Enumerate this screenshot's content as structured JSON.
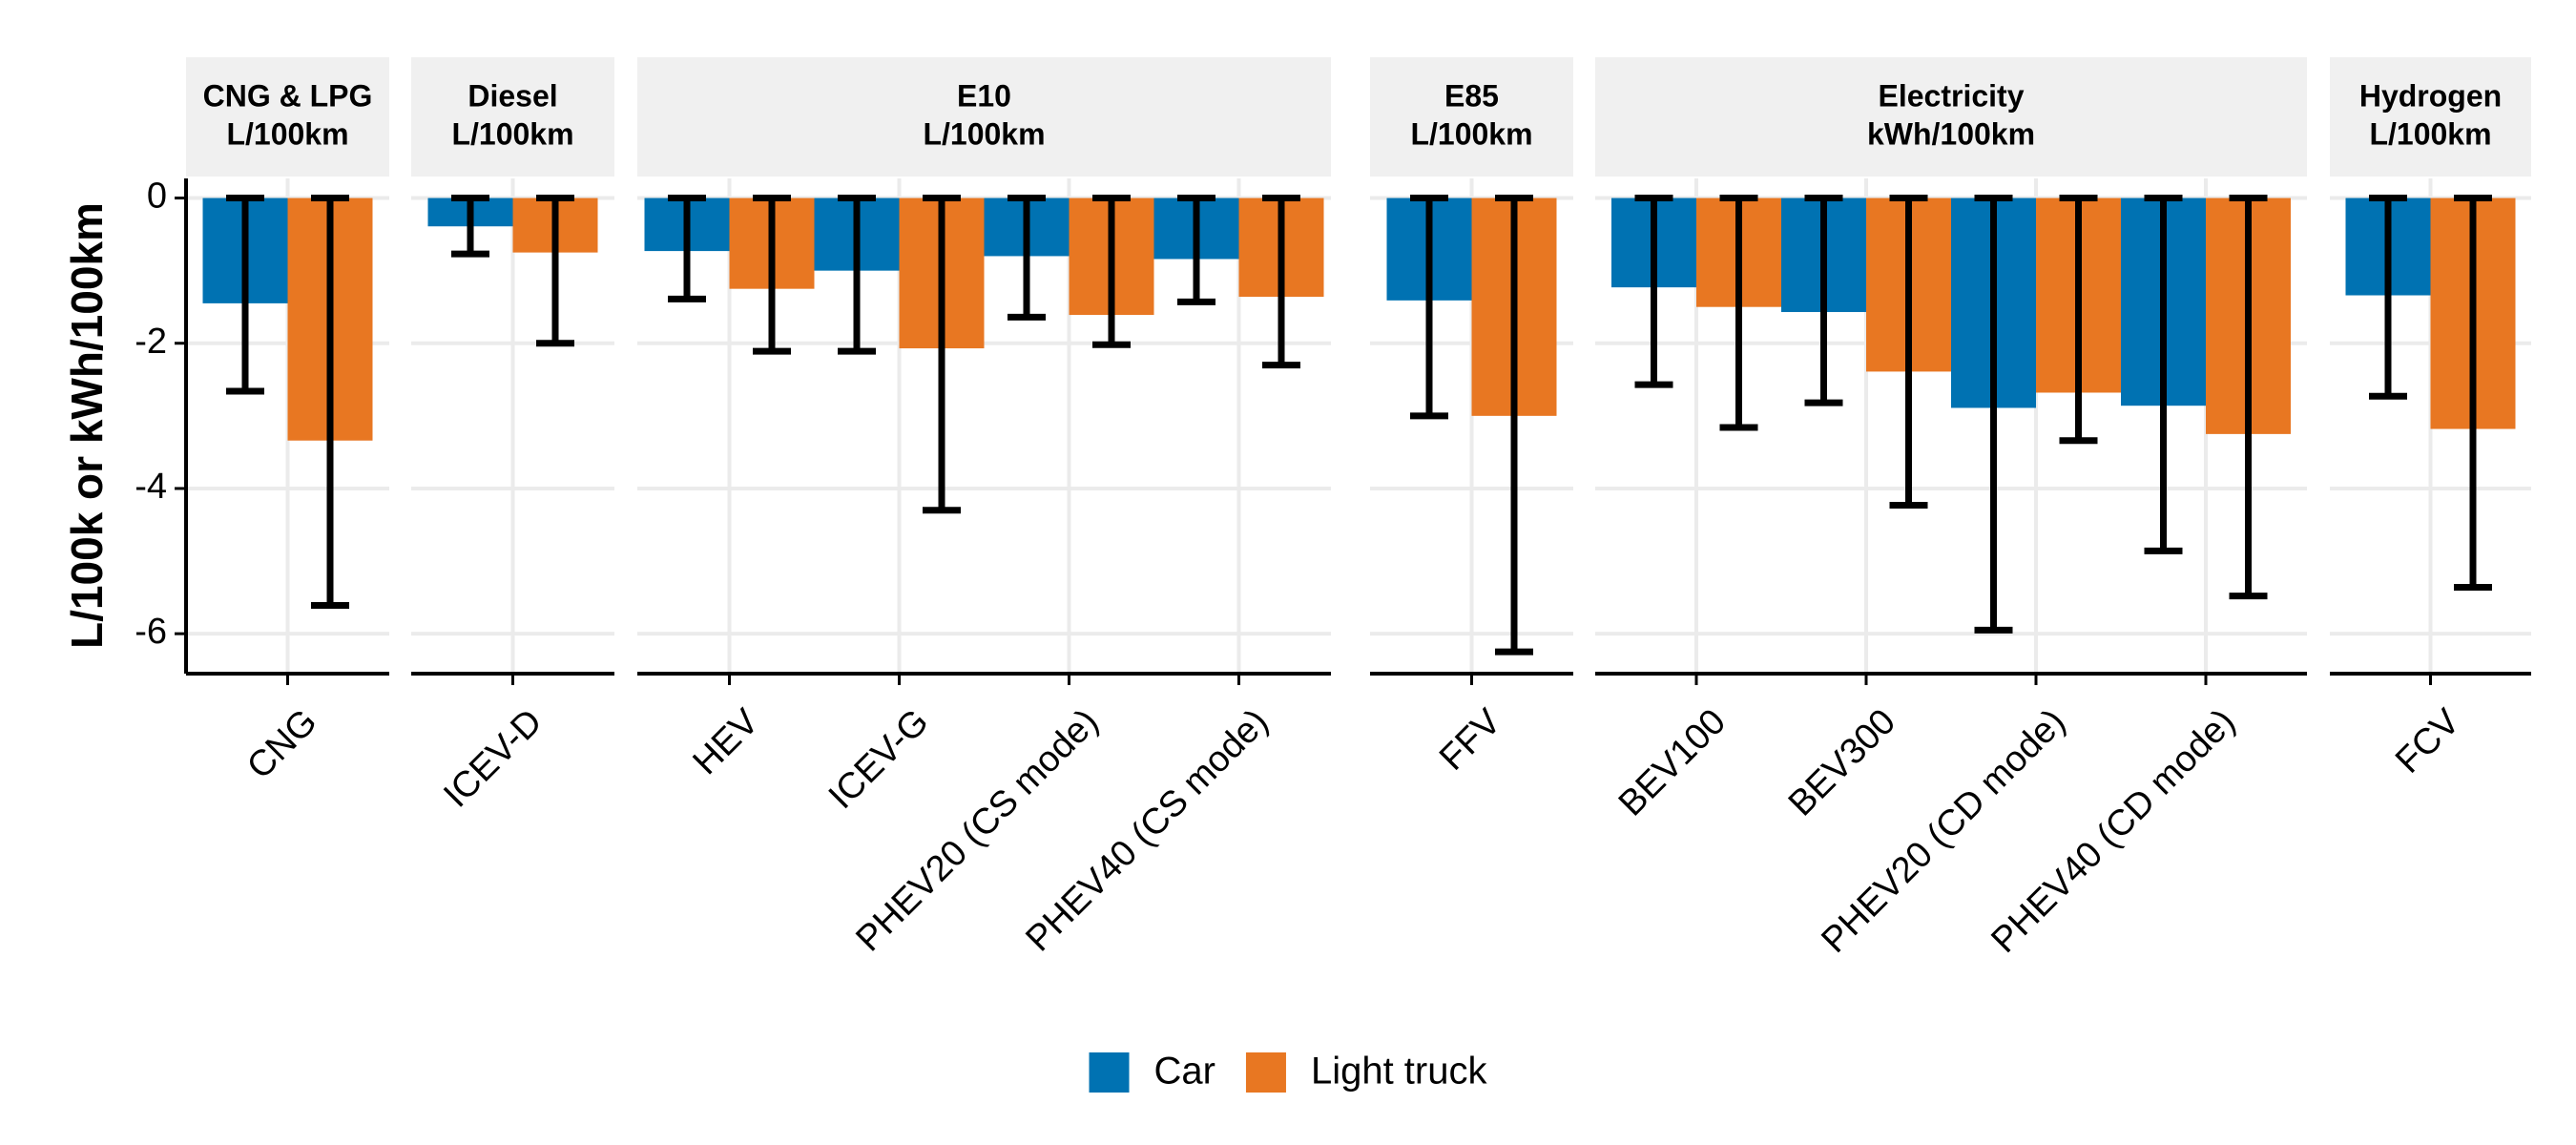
{
  "chart_data": {
    "type": "bar",
    "y_label": "L/100k or kWh/100km",
    "ylim": [
      -6.55,
      0.27
    ],
    "yticks": [
      0,
      -2,
      -4,
      -6
    ],
    "grid": true,
    "legend": "bottom",
    "series": [
      {
        "name": "Car",
        "color": "#0072B2"
      },
      {
        "name": "Light truck",
        "color": "#E87722"
      }
    ],
    "facets": [
      {
        "title": [
          "CNG & LPG",
          "L/100km"
        ],
        "categories": [
          "CNG"
        ],
        "values": [
          [
            -1.45
          ],
          [
            -3.34
          ]
        ],
        "lower": [
          [
            -2.66
          ],
          [
            -5.61
          ]
        ],
        "upper": [
          [
            0
          ],
          [
            0
          ]
        ]
      },
      {
        "title": [
          "Diesel",
          "L/100km"
        ],
        "categories": [
          "ICEV-D"
        ],
        "values": [
          [
            -0.39
          ],
          [
            -0.75
          ]
        ],
        "lower": [
          [
            -0.77
          ],
          [
            -2.0
          ]
        ],
        "upper": [
          [
            0
          ],
          [
            0
          ]
        ]
      },
      {
        "title": [
          "E10",
          "L/100km"
        ],
        "categories": [
          "HEV",
          "ICEV-G",
          "PHEV20 (CS mode)",
          "PHEV40 (CS mode)"
        ],
        "values": [
          [
            -0.73,
            -1.0,
            -0.8,
            -0.84
          ],
          [
            -1.25,
            -2.07,
            -1.61,
            -1.36
          ]
        ],
        "lower": [
          [
            -1.39,
            -2.11,
            -1.64,
            -1.43
          ],
          [
            -2.11,
            -4.3,
            -2.02,
            -2.3
          ]
        ],
        "upper": [
          [
            0,
            0,
            0,
            0
          ],
          [
            0,
            0,
            0,
            0
          ]
        ]
      },
      {
        "title": [
          "E85",
          "L/100km"
        ],
        "categories": [
          "FFV"
        ],
        "values": [
          [
            -1.41
          ],
          [
            -3.0
          ]
        ],
        "lower": [
          [
            -3.0
          ],
          [
            -6.25
          ]
        ],
        "upper": [
          [
            0
          ],
          [
            0
          ]
        ]
      },
      {
        "title": [
          "Electricity",
          "kWh/100km"
        ],
        "categories": [
          "BEV100",
          "BEV300",
          "PHEV20 (CD mode)",
          "PHEV40 (CD mode)"
        ],
        "values": [
          [
            -1.23,
            -1.57,
            -2.89,
            -2.86
          ],
          [
            -1.5,
            -2.39,
            -2.68,
            -3.25
          ]
        ],
        "lower": [
          [
            -2.57,
            -2.82,
            -5.95,
            -4.86
          ],
          [
            -3.16,
            -4.23,
            -3.34,
            -5.48
          ]
        ],
        "upper": [
          [
            0,
            0,
            0,
            0
          ],
          [
            0,
            0,
            0,
            0
          ]
        ]
      },
      {
        "title": [
          "Hydrogen",
          "L/100km"
        ],
        "categories": [
          "FCV"
        ],
        "values": [
          [
            -1.34
          ],
          [
            -3.18
          ]
        ],
        "lower": [
          [
            -2.73
          ],
          [
            -5.36
          ]
        ],
        "upper": [
          [
            0
          ],
          [
            0
          ]
        ]
      }
    ]
  }
}
